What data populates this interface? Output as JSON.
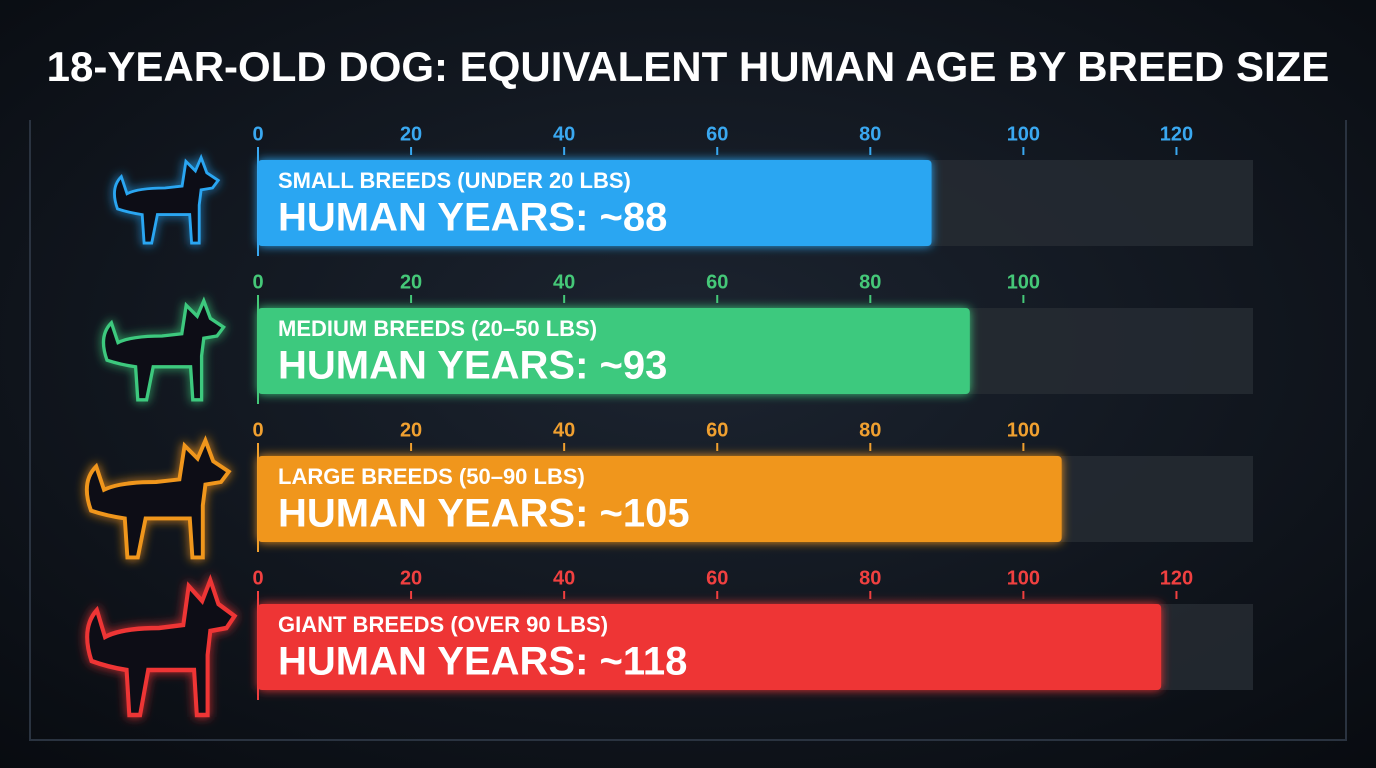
{
  "title": "18-YEAR-OLD DOG: EQUIVALENT HUMAN AGE BY BREED SIZE",
  "chart_data": [
    {
      "type": "bar",
      "categories": [
        "SMALL BREEDS (UNDER 20 LBS)"
      ],
      "values": [
        88
      ],
      "value_labels": [
        "HUMAN YEARS: ~88"
      ],
      "color": "#2aa6f2",
      "tick_color": "#3aa8f0",
      "xlim": [
        0,
        130
      ],
      "xticks": [
        0,
        20,
        40,
        60,
        80,
        100,
        120
      ]
    },
    {
      "type": "bar",
      "categories": [
        "MEDIUM BREEDS (20–50 LBS)"
      ],
      "values": [
        93
      ],
      "value_labels": [
        "HUMAN YEARS: ~93"
      ],
      "color": "#3ec97e",
      "tick_color": "#45c878",
      "xlim": [
        0,
        130
      ],
      "xticks": [
        0,
        20,
        40,
        60,
        80,
        100
      ]
    },
    {
      "type": "bar",
      "categories": [
        "LARGE BREEDS (50–90 LBS)"
      ],
      "values": [
        105
      ],
      "value_labels": [
        "HUMAN YEARS: ~105"
      ],
      "color": "#f0961e",
      "tick_color": "#f0a030",
      "xlim": [
        0,
        130
      ],
      "xticks": [
        0,
        20,
        40,
        60,
        80,
        100
      ]
    },
    {
      "type": "bar",
      "categories": [
        "GIANT BREEDS (OVER 90 LBS)"
      ],
      "values": [
        118
      ],
      "value_labels": [
        "HUMAN YEARS: ~118"
      ],
      "color": "#ee3434",
      "tick_color": "#f04040",
      "xlim": [
        0,
        130
      ],
      "xticks": [
        0,
        20,
        40,
        60,
        80,
        100,
        120
      ]
    }
  ]
}
